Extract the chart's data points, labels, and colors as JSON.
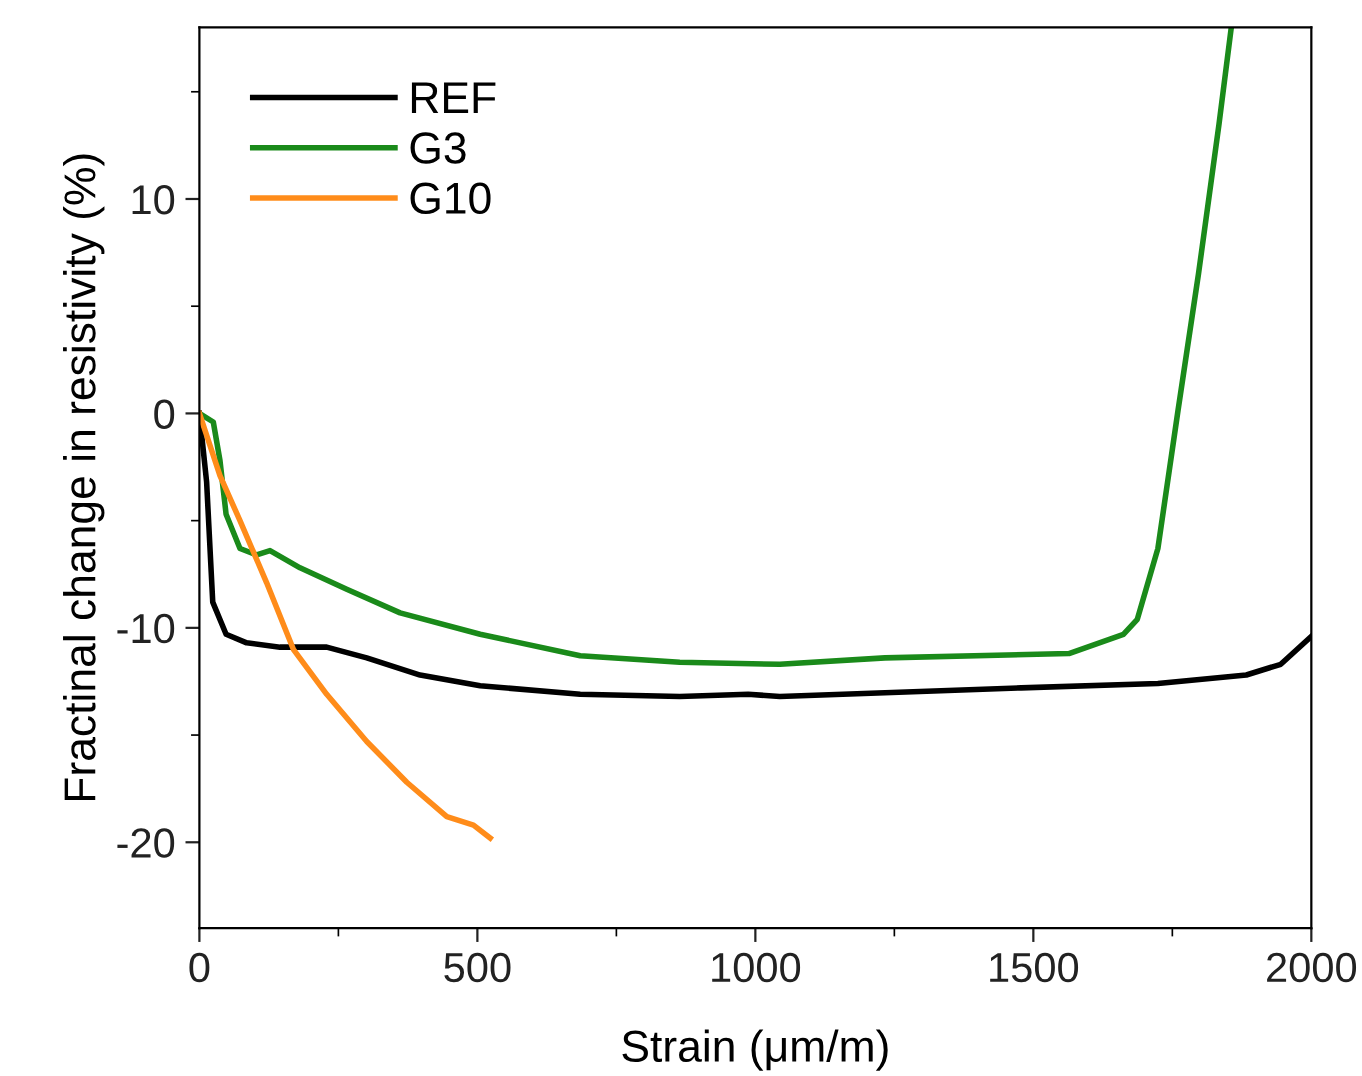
{
  "chart_data": {
    "type": "line",
    "xlabel": "Strain (μm/m)",
    "ylabel": "Fractinal change in resistivity (%)",
    "xlim": [
      0,
      2000
    ],
    "ylim": [
      -24,
      18
    ],
    "xticks": [
      0,
      {
        "value": 250,
        "label": null
      },
      500,
      {
        "value": 750,
        "label": null
      },
      1000,
      {
        "value": 1250,
        "label": null
      },
      1500,
      {
        "value": 1750,
        "label": null
      },
      2000
    ],
    "yticks": [
      {
        "value": -20,
        "label": "-20"
      },
      {
        "value": -15,
        "label": null
      },
      {
        "value": -10,
        "label": "-10"
      },
      {
        "value": -5,
        "label": null
      },
      0,
      {
        "value": 5,
        "label": null
      },
      10,
      {
        "value": 15,
        "label": null
      }
    ],
    "grid": false,
    "legend": "top left",
    "marker": "none",
    "line_style": "solid",
    "series": [
      {
        "name": "REF",
        "color": "#000000",
        "x": [
          0,
          13,
          24,
          48,
          85,
          145,
          229,
          301,
          397,
          505,
          685,
          864,
          987,
          1044,
          1478,
          1724,
          1883,
          1945,
          2000
        ],
        "values": [
          0,
          -3.2,
          -8.8,
          -10.3,
          -10.7,
          -10.9,
          -10.9,
          -11.4,
          -12.2,
          -12.7,
          -13.1,
          -13.2,
          -13.1,
          -13.2,
          -12.8,
          -12.6,
          -12.2,
          -11.7,
          -10.4
        ]
      },
      {
        "name": "G3",
        "color": "#1a8a1a",
        "x": [
          0,
          25,
          37,
          48,
          73,
          103,
          127,
          181,
          265,
          361,
          505,
          685,
          864,
          1044,
          1233,
          1564,
          1662,
          1687,
          1724,
          1760,
          1797,
          1834,
          1856
        ],
        "values": [
          0,
          -0.4,
          -2.2,
          -4.7,
          -6.3,
          -6.6,
          -6.4,
          -7.2,
          -8.2,
          -9.3,
          -10.3,
          -11.3,
          -11.6,
          -11.7,
          -11.4,
          -11.2,
          -10.3,
          -9.6,
          -6.3,
          0.1,
          6.5,
          13.5,
          18
        ]
      },
      {
        "name": "G10",
        "color": "#ff8c1a",
        "x": [
          0,
          37,
          73,
          121,
          169,
          229,
          301,
          373,
          445,
          493,
          523
        ],
        "values": [
          0,
          -2.9,
          -5.0,
          -7.9,
          -11.0,
          -13.1,
          -15.3,
          -17.2,
          -18.8,
          -19.2,
          -19.8
        ]
      }
    ]
  }
}
